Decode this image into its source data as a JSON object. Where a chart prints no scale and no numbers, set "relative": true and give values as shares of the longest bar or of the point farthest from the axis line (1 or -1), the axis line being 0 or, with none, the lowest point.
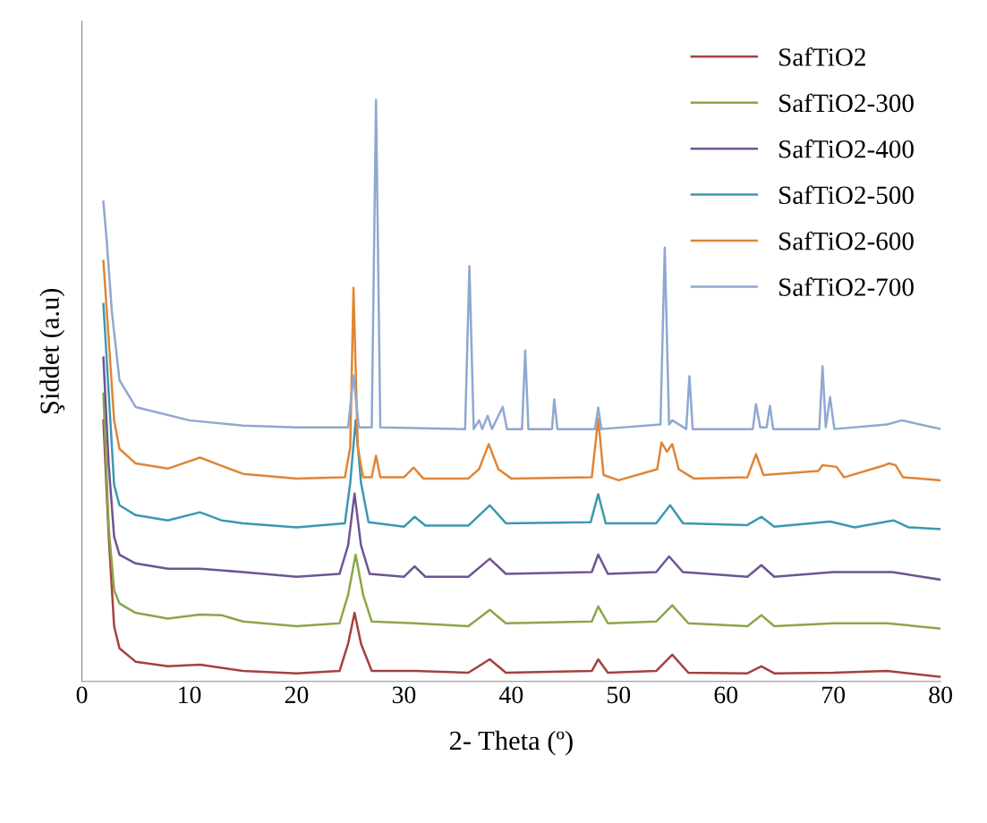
{
  "chart_data": {
    "type": "line",
    "relative": true,
    "xlabel": "2- Theta (º)",
    "ylabel": "Şiddet (a.u)",
    "xlim": [
      0,
      80
    ],
    "xticks": [
      0,
      10,
      20,
      30,
      40,
      50,
      60,
      70,
      80
    ],
    "grid": false,
    "legend": "top right",
    "marker": "none",
    "line_style": "solid",
    "series": [
      {
        "name": "SafTiO2",
        "color": "#a5403d",
        "x": [
          2.0,
          2.5,
          3.0,
          3.5,
          5,
          8,
          11,
          15,
          20,
          24,
          24.8,
          25.4,
          26.0,
          27,
          31,
          36,
          38,
          39.5,
          47.5,
          48.1,
          49,
          53.5,
          55,
          56.5,
          62,
          63.3,
          64.5,
          70,
          75,
          80
        ],
        "values": [
          0.449,
          0.249,
          0.095,
          0.057,
          0.034,
          0.026,
          0.029,
          0.018,
          0.014,
          0.018,
          0.065,
          0.118,
          0.065,
          0.018,
          0.018,
          0.015,
          0.038,
          0.015,
          0.018,
          0.038,
          0.015,
          0.018,
          0.046,
          0.015,
          0.014,
          0.026,
          0.014,
          0.015,
          0.018,
          0.008
        ]
      },
      {
        "name": "SafTiO2-300",
        "color": "#8aa64a",
        "x": [
          2.0,
          2.5,
          3.0,
          3.5,
          5,
          8,
          11,
          13,
          15,
          20,
          24,
          24.8,
          25.5,
          26.2,
          27,
          31,
          36,
          38,
          39.5,
          47.5,
          48.1,
          49,
          53.5,
          55,
          56.5,
          62,
          63.3,
          64.5,
          70,
          75,
          80
        ],
        "values": [
          0.495,
          0.265,
          0.157,
          0.134,
          0.118,
          0.108,
          0.115,
          0.114,
          0.103,
          0.095,
          0.1,
          0.149,
          0.218,
          0.149,
          0.103,
          0.1,
          0.095,
          0.123,
          0.1,
          0.103,
          0.129,
          0.1,
          0.103,
          0.131,
          0.1,
          0.095,
          0.114,
          0.095,
          0.1,
          0.1,
          0.091
        ]
      },
      {
        "name": "SafTiO2-400",
        "color": "#6e5494",
        "x": [
          2.0,
          2.5,
          3.0,
          3.5,
          5,
          8,
          11,
          15,
          20,
          24,
          24.8,
          25.4,
          26.0,
          26.8,
          30,
          31,
          32,
          36,
          38,
          39.5,
          47.5,
          48.1,
          49,
          53.5,
          54.7,
          56,
          62,
          63.3,
          64.5,
          70,
          75.5,
          80
        ],
        "values": [
          0.557,
          0.372,
          0.249,
          0.218,
          0.203,
          0.194,
          0.194,
          0.188,
          0.18,
          0.185,
          0.234,
          0.323,
          0.234,
          0.185,
          0.18,
          0.198,
          0.18,
          0.18,
          0.211,
          0.185,
          0.188,
          0.218,
          0.185,
          0.188,
          0.215,
          0.188,
          0.18,
          0.2,
          0.18,
          0.188,
          0.188,
          0.175
        ]
      },
      {
        "name": "SafTiO2-500",
        "color": "#3c98b0",
        "x": [
          2.0,
          2.5,
          3.0,
          3.5,
          5,
          8,
          11,
          13,
          15,
          20,
          24.5,
          25.0,
          25.5,
          26.0,
          26.7,
          30,
          31,
          32,
          36,
          38,
          39.5,
          47.4,
          48.1,
          48.8,
          53.5,
          54.8,
          56,
          62,
          63.3,
          64.5,
          69.7,
          72,
          75.6,
          77,
          80
        ],
        "values": [
          0.649,
          0.495,
          0.338,
          0.303,
          0.286,
          0.277,
          0.291,
          0.277,
          0.272,
          0.265,
          0.272,
          0.342,
          0.449,
          0.342,
          0.274,
          0.266,
          0.283,
          0.268,
          0.268,
          0.303,
          0.272,
          0.274,
          0.322,
          0.272,
          0.272,
          0.303,
          0.272,
          0.269,
          0.283,
          0.266,
          0.275,
          0.265,
          0.277,
          0.265,
          0.262
        ]
      },
      {
        "name": "SafTiO2-600",
        "color": "#e08535",
        "x": [
          2.0,
          2.5,
          3.0,
          3.5,
          5,
          8,
          11,
          13,
          15,
          20,
          24.5,
          25.0,
          25.3,
          25.7,
          26.2,
          27.0,
          27.4,
          27.8,
          30,
          30.9,
          31.8,
          36,
          37,
          37.9,
          38.8,
          40,
          47.5,
          48.1,
          48.6,
          50,
          53.6,
          54.0,
          54.5,
          55.0,
          55.6,
          57,
          62,
          62.8,
          63.5,
          68.6,
          69,
          70.3,
          71,
          74.8,
          75.2,
          75.8,
          76.5,
          80
        ],
        "values": [
          0.723,
          0.588,
          0.449,
          0.4,
          0.375,
          0.366,
          0.385,
          0.371,
          0.357,
          0.349,
          0.351,
          0.403,
          0.677,
          0.403,
          0.351,
          0.351,
          0.388,
          0.351,
          0.351,
          0.368,
          0.349,
          0.349,
          0.365,
          0.408,
          0.365,
          0.349,
          0.351,
          0.452,
          0.355,
          0.346,
          0.365,
          0.411,
          0.395,
          0.408,
          0.365,
          0.349,
          0.351,
          0.391,
          0.355,
          0.362,
          0.372,
          0.369,
          0.351,
          0.372,
          0.375,
          0.372,
          0.351,
          0.346
        ]
      },
      {
        "name": "SafTiO2-700",
        "color": "#8fa8d0",
        "x": [
          2.0,
          2.3,
          2.8,
          3.5,
          5,
          10,
          15,
          20,
          24.8,
          25.3,
          25.8,
          27.0,
          27.4,
          27.8,
          35.7,
          36.1,
          36.5,
          37.0,
          37.3,
          37.8,
          38.2,
          39.2,
          39.6,
          41.0,
          41.3,
          41.6,
          43.8,
          44.0,
          44.3,
          47.8,
          48.1,
          48.4,
          53.9,
          54.3,
          54.7,
          55.0,
          56.3,
          56.6,
          56.9,
          62.5,
          62.8,
          63.2,
          63.8,
          64.1,
          64.4,
          68.7,
          69.0,
          69.3,
          69.7,
          70.1,
          75,
          76.4,
          80
        ],
        "values": [
          0.825,
          0.76,
          0.634,
          0.518,
          0.472,
          0.449,
          0.44,
          0.437,
          0.437,
          0.526,
          0.437,
          0.437,
          1.0,
          0.437,
          0.434,
          0.714,
          0.434,
          0.449,
          0.434,
          0.457,
          0.434,
          0.472,
          0.434,
          0.434,
          0.569,
          0.434,
          0.434,
          0.485,
          0.434,
          0.434,
          0.471,
          0.434,
          0.442,
          0.746,
          0.442,
          0.449,
          0.434,
          0.525,
          0.434,
          0.434,
          0.477,
          0.437,
          0.437,
          0.474,
          0.434,
          0.434,
          0.542,
          0.437,
          0.489,
          0.434,
          0.442,
          0.449,
          0.434
        ]
      }
    ]
  }
}
